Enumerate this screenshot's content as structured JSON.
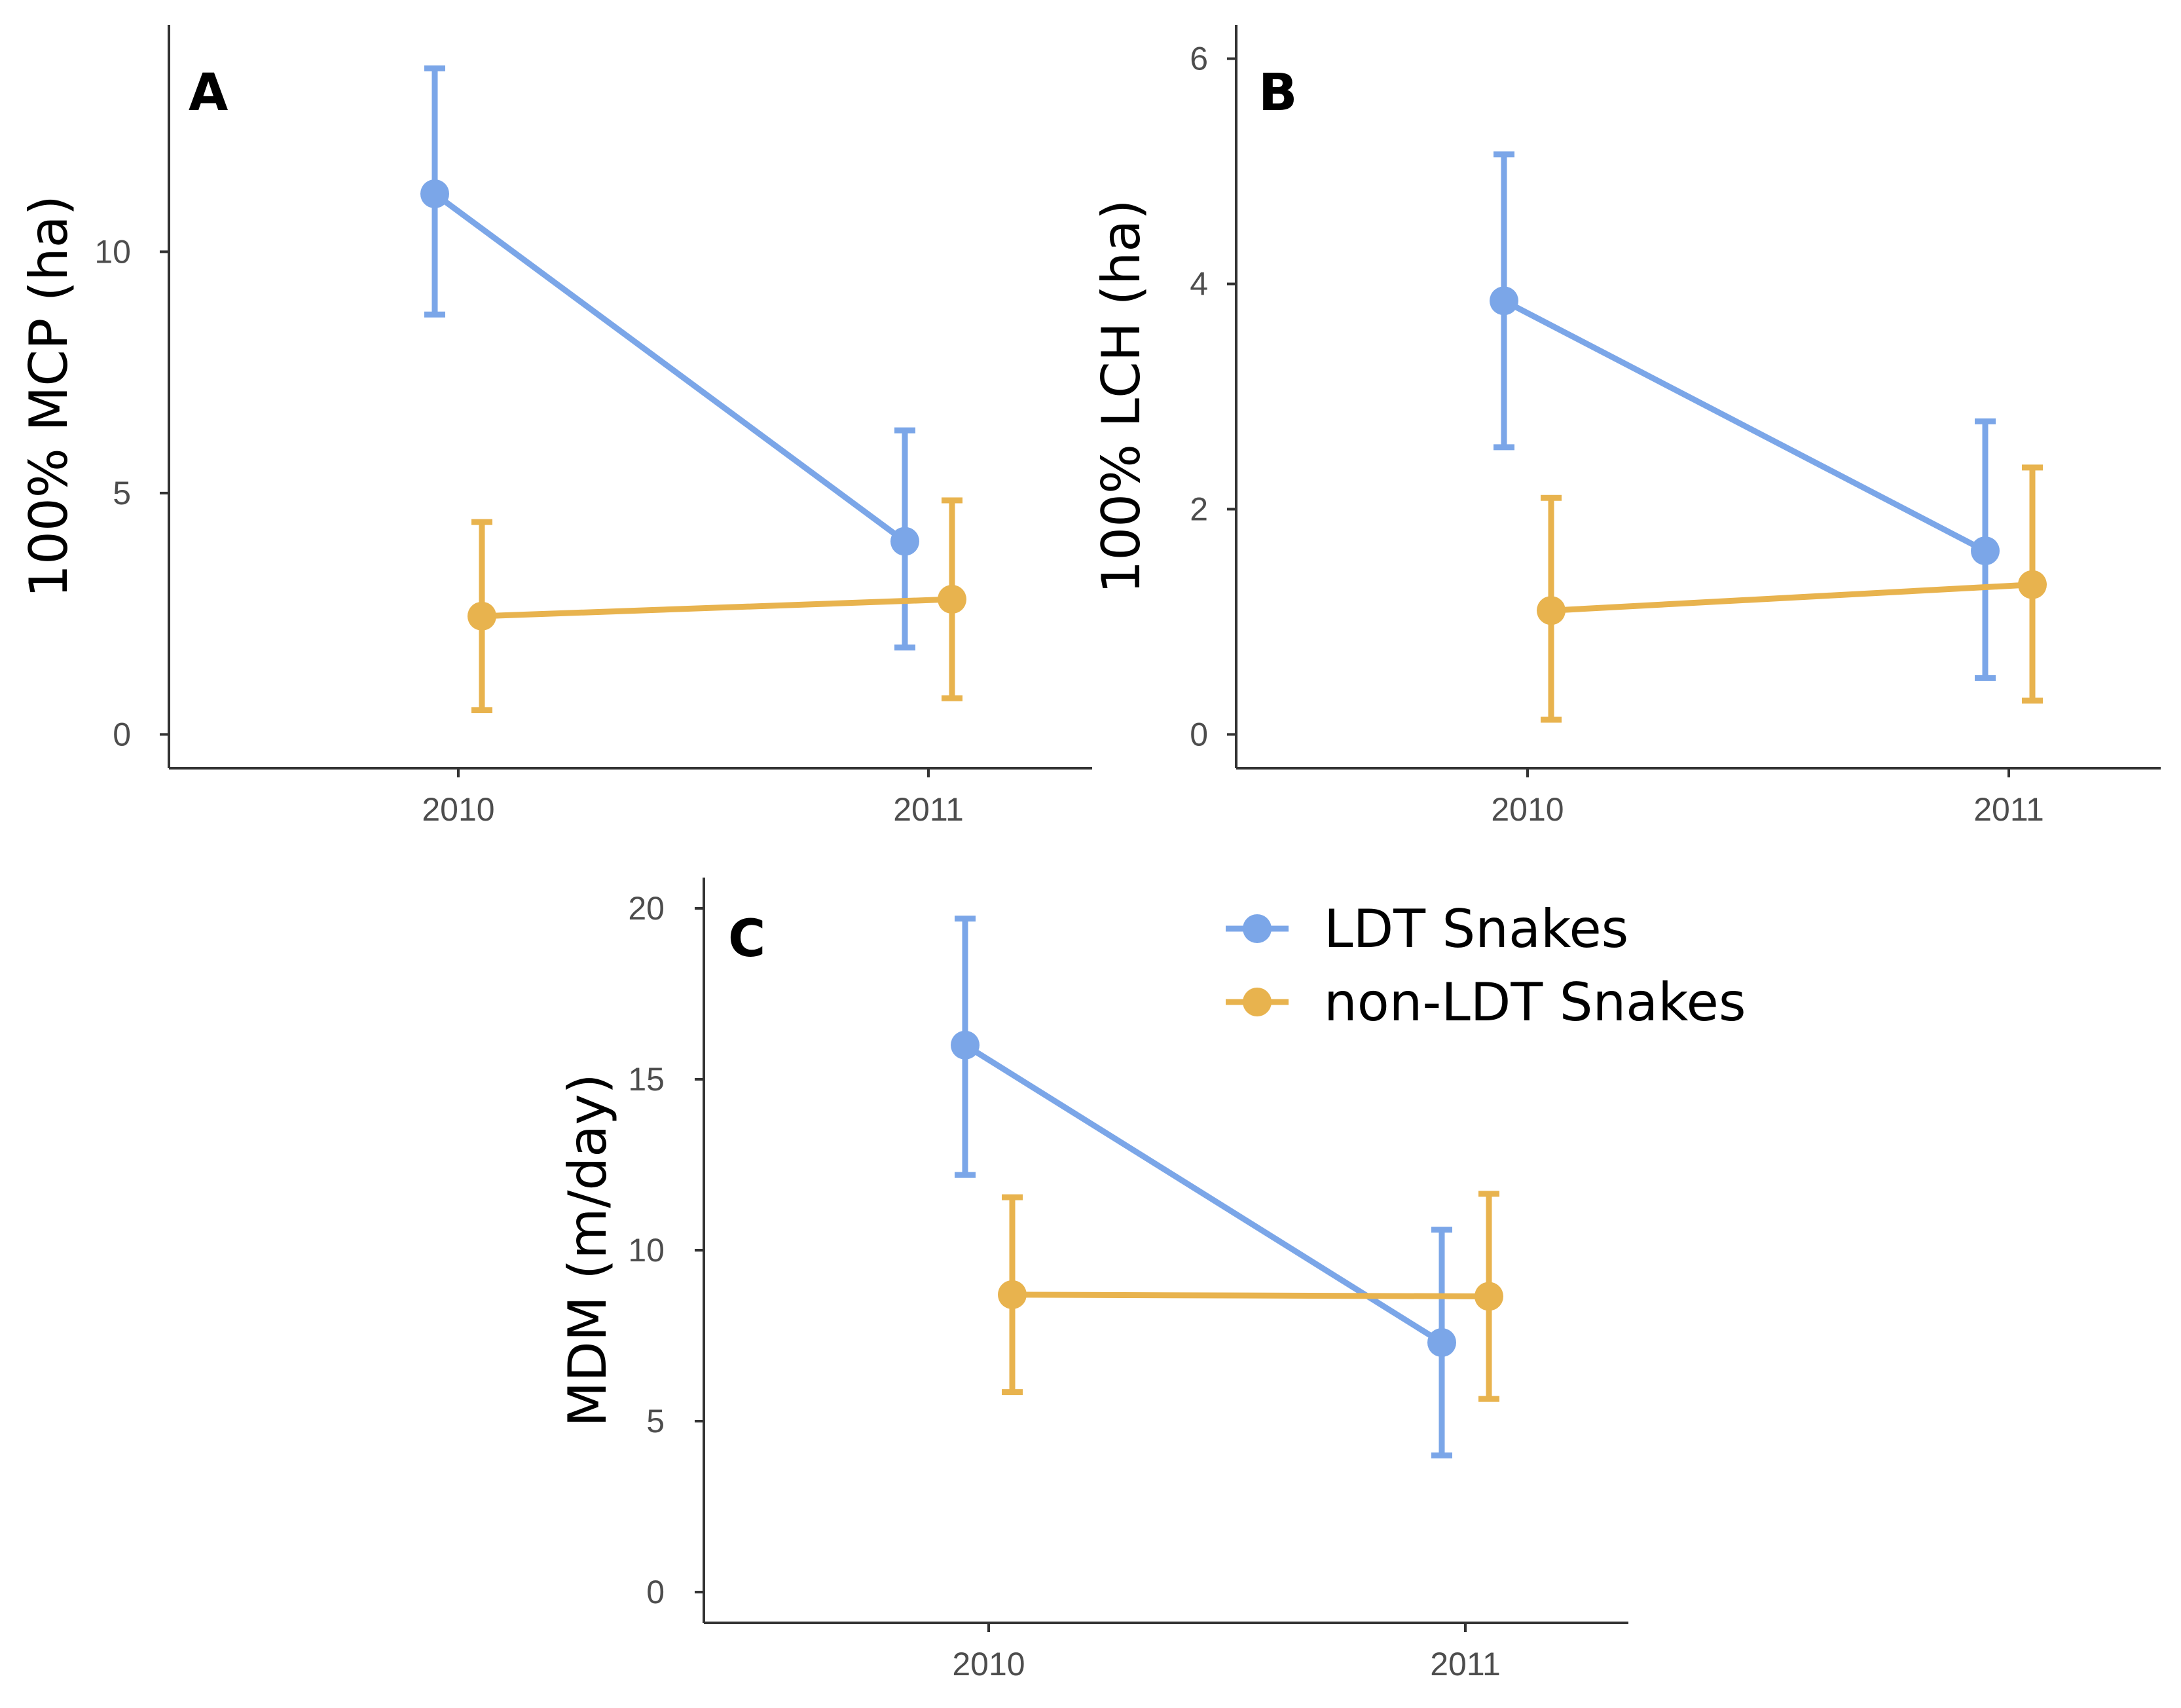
{
  "legend": {
    "entries": [
      {
        "name": "LDT Snakes",
        "color": "#7BA6E8"
      },
      {
        "name": "non-LDT Snakes",
        "color": "#E8B34E"
      }
    ]
  },
  "chart_data": [
    {
      "type": "line",
      "panel": "A",
      "title": "",
      "xlabel": "",
      "ylabel": "100% MCP (ha)",
      "categories": [
        "2010",
        "2011"
      ],
      "ylim": [
        -0.7,
        14.7
      ],
      "yticks": [
        0,
        5,
        10
      ],
      "series": [
        {
          "name": "LDT Snakes",
          "values": [
            11.2,
            4.0
          ],
          "lower": [
            8.7,
            1.8
          ],
          "upper": [
            13.8,
            6.3
          ]
        },
        {
          "name": "non-LDT Snakes",
          "values": [
            2.45,
            2.8
          ],
          "lower": [
            0.5,
            0.75
          ],
          "upper": [
            4.4,
            4.85
          ]
        }
      ]
    },
    {
      "type": "line",
      "panel": "B",
      "title": "",
      "xlabel": "",
      "ylabel": "100% LCH (ha)",
      "categories": [
        "2010",
        "2011"
      ],
      "ylim": [
        -0.3,
        6.3
      ],
      "yticks": [
        0,
        2,
        4,
        6
      ],
      "series": [
        {
          "name": "LDT Snakes",
          "values": [
            3.85,
            1.63
          ],
          "lower": [
            2.55,
            0.5
          ],
          "upper": [
            5.15,
            2.78
          ]
        },
        {
          "name": "non-LDT Snakes",
          "values": [
            1.1,
            1.33
          ],
          "lower": [
            0.13,
            0.3
          ],
          "upper": [
            2.1,
            2.37
          ]
        }
      ]
    },
    {
      "type": "line",
      "panel": "C",
      "title": "",
      "xlabel": "",
      "ylabel": "MDM (m/day)",
      "categories": [
        "2010",
        "2011"
      ],
      "ylim": [
        -0.9,
        20.9
      ],
      "yticks": [
        0,
        5,
        10,
        15,
        20
      ],
      "series": [
        {
          "name": "LDT Snakes",
          "values": [
            16.0,
            7.3
          ],
          "lower": [
            12.2,
            4.0
          ],
          "upper": [
            19.7,
            10.6
          ]
        },
        {
          "name": "non-LDT Snakes",
          "values": [
            8.7,
            8.65
          ],
          "lower": [
            5.85,
            5.65
          ],
          "upper": [
            11.55,
            11.65
          ]
        }
      ]
    }
  ]
}
